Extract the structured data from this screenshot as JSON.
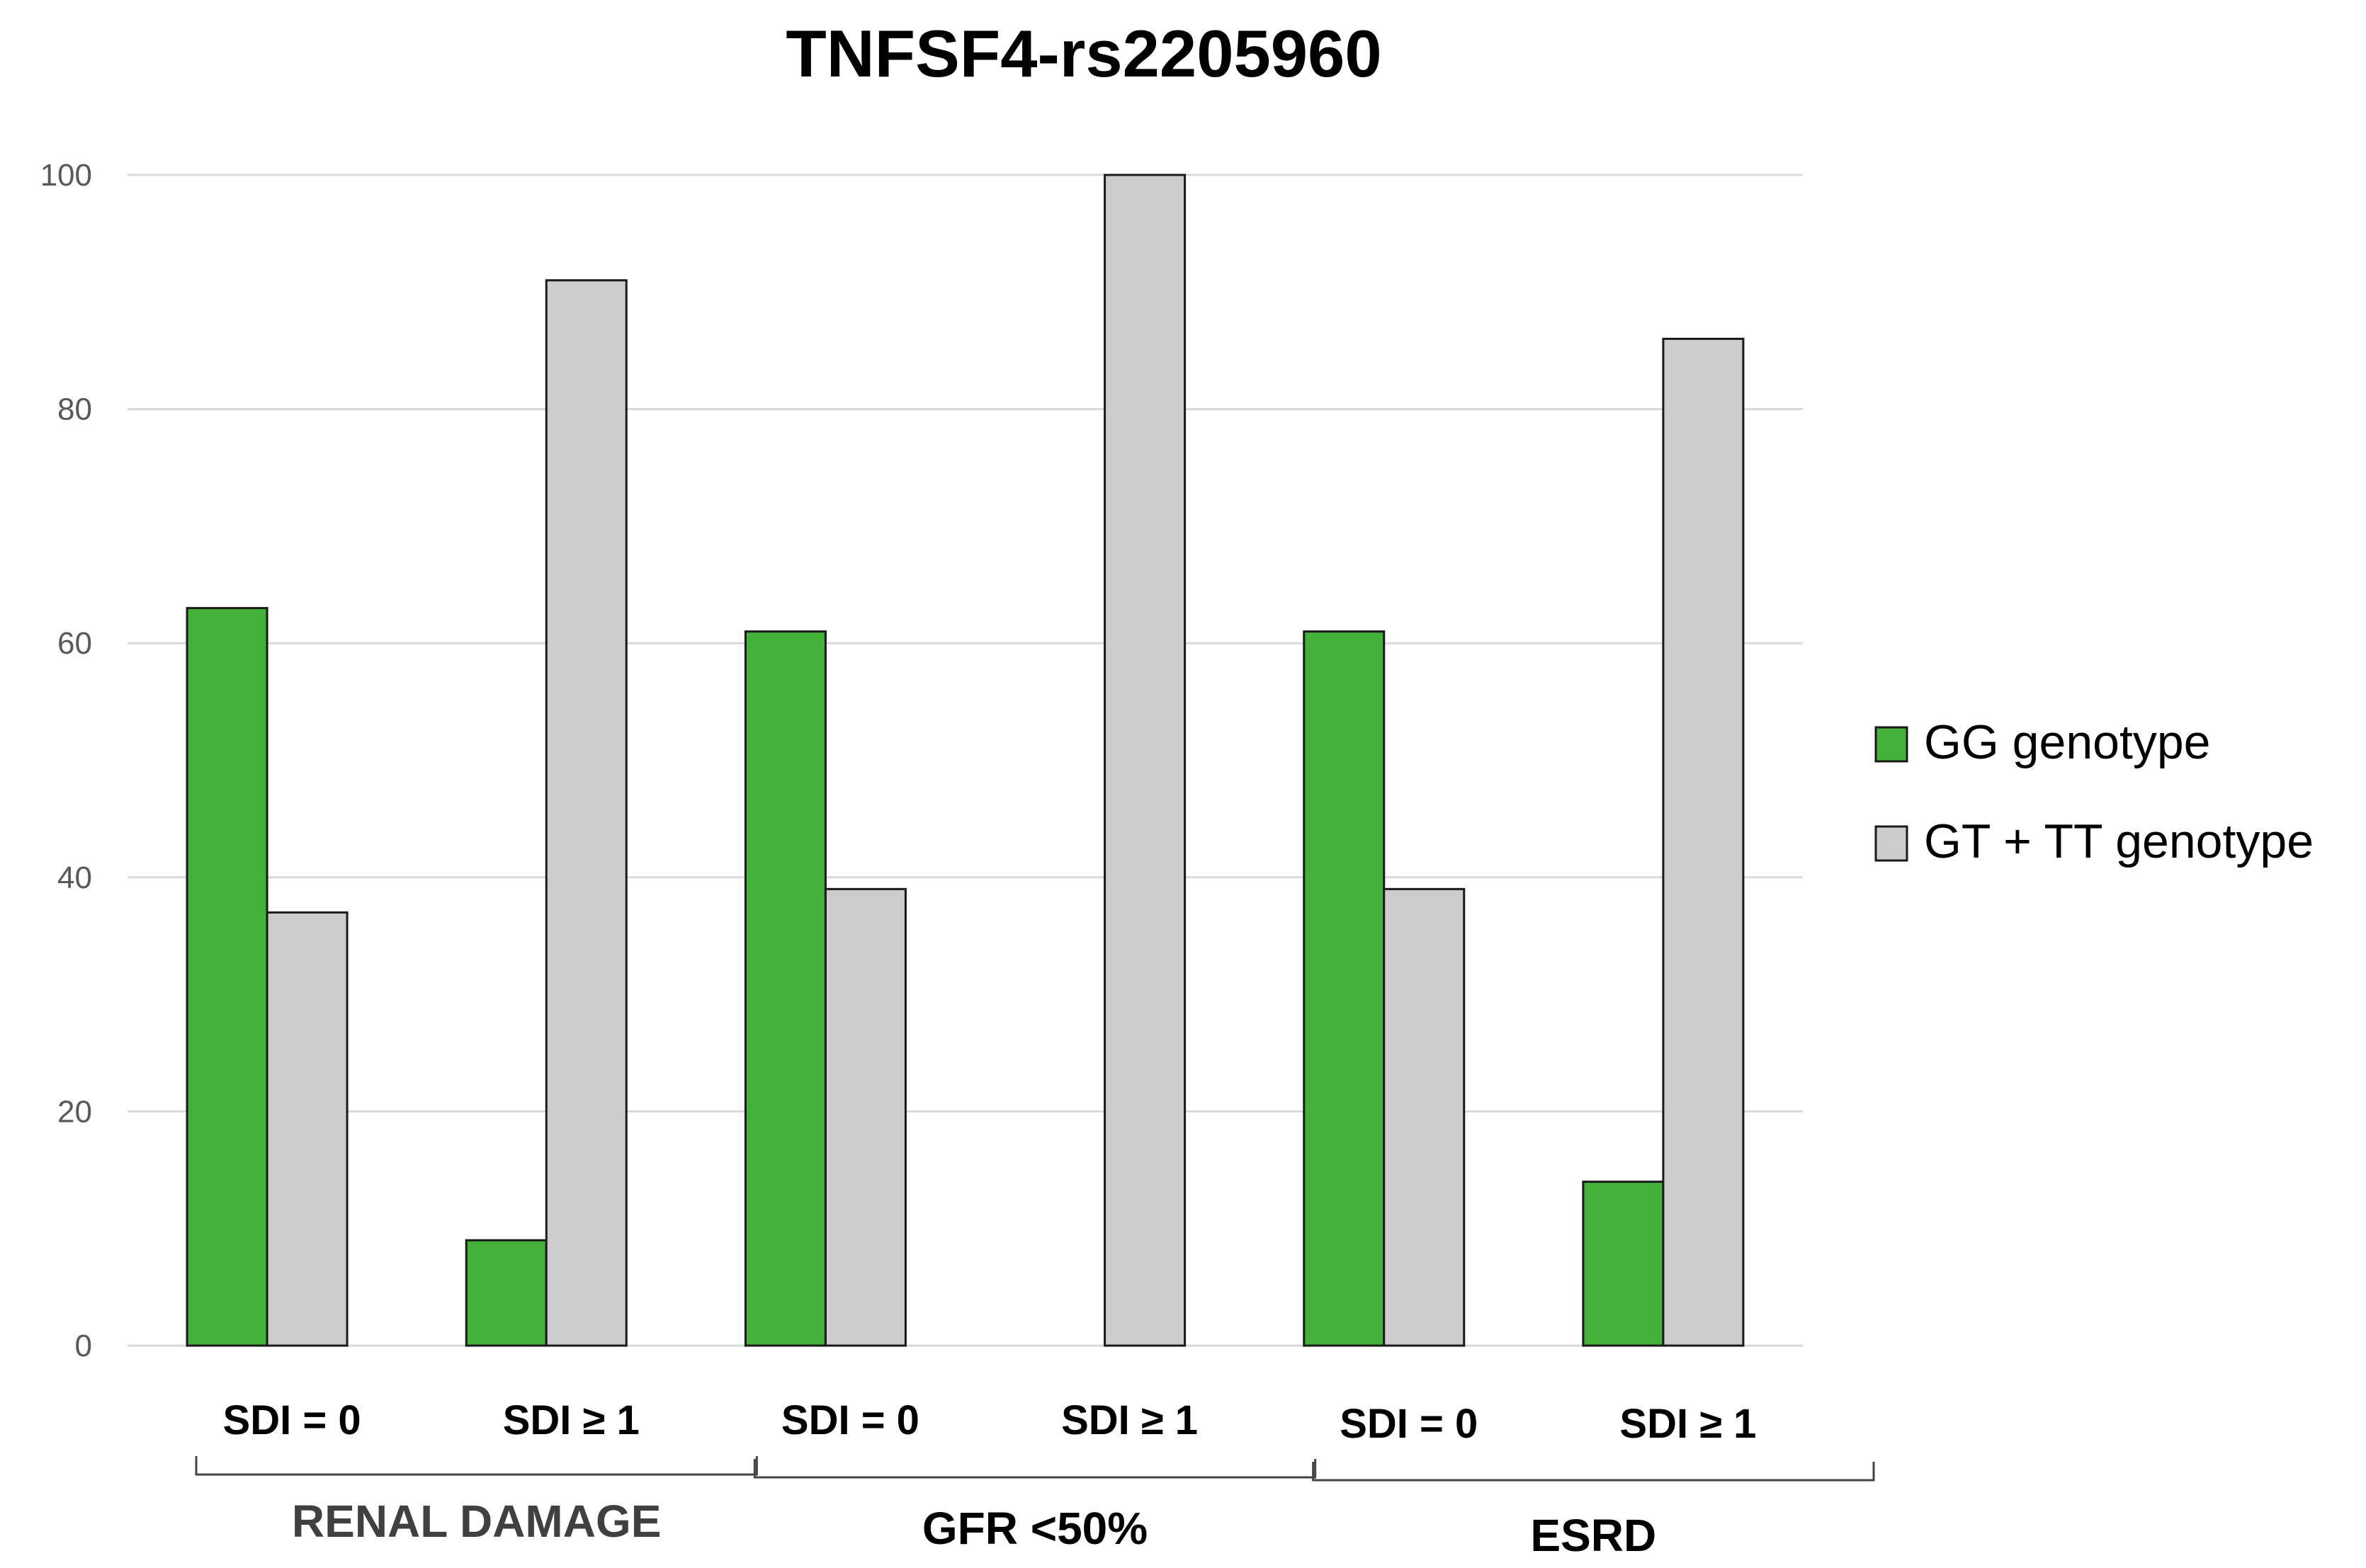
{
  "chart_data": {
    "type": "bar",
    "title": "TNFSF4-rs2205960",
    "xlabel": "",
    "ylabel": "",
    "ylim": [
      0,
      100
    ],
    "yticks": [
      0,
      20,
      40,
      60,
      80,
      100
    ],
    "grid": true,
    "legend_position": "right",
    "categories": [
      "SDI = 0",
      "SDI ≥ 1",
      "SDI = 0",
      "SDI ≥ 1",
      "SDI = 0",
      "SDI ≥ 1"
    ],
    "groups": [
      {
        "label": "RENAL DAMAGE",
        "categories": [
          0,
          1
        ]
      },
      {
        "label": "GFR <50%",
        "categories": [
          2,
          3
        ]
      },
      {
        "label": "ESRD",
        "categories": [
          4,
          5
        ]
      }
    ],
    "series": [
      {
        "name": "GG genotype",
        "color": "#43b13a",
        "values": [
          63,
          9,
          61,
          0,
          61,
          14
        ]
      },
      {
        "name": "GT + TT genotype",
        "color": "#cccccc",
        "values": [
          37,
          91,
          39,
          100,
          39,
          86
        ]
      }
    ]
  }
}
